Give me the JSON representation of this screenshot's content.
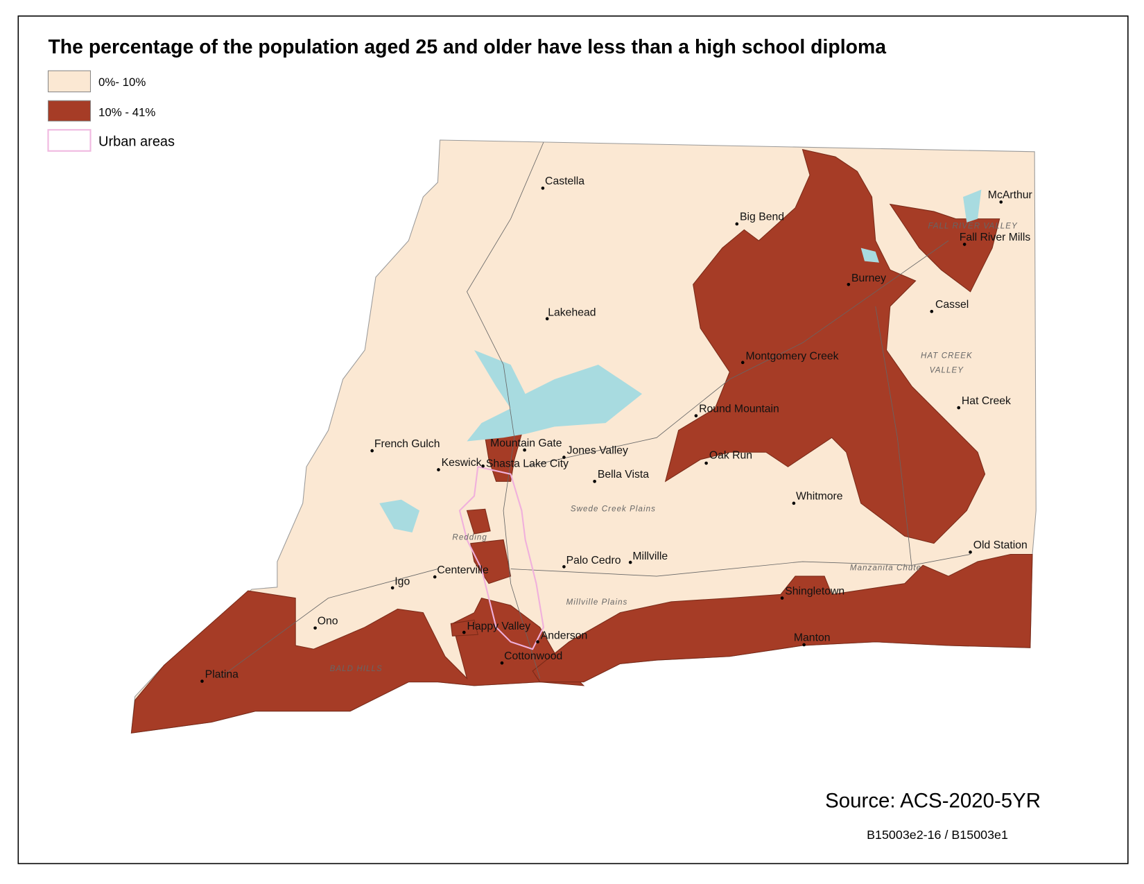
{
  "title": "The percentage of the population aged 25 and older have less than a high school diploma",
  "legend": {
    "items": [
      {
        "label": "0%- 10%"
      },
      {
        "label": "10% - 41%"
      },
      {
        "label": "Urban areas"
      }
    ]
  },
  "places": [
    "Castella",
    "Big Bend",
    "McArthur",
    "Fall River Mills",
    "Burney",
    "Cassel",
    "Lakehead",
    "Montgomery Creek",
    "Hat Creek",
    "Round Mountain",
    "French Gulch",
    "Mountain Gate",
    "Jones Valley",
    "Keswick",
    "Shasta Lake City",
    "Oak Run",
    "Bella Vista",
    "Whitmore",
    "Old Station",
    "Palo Cedro",
    "Millville",
    "Centerville",
    "Igo",
    "Shingletown",
    "Ono",
    "Happy Valley",
    "Anderson",
    "Manton",
    "Cottonwood",
    "Platina"
  ],
  "region_labels": [
    "BALD HILLS",
    "HAT CREEK",
    "VALLEY",
    "FALL RIVER VALLEY",
    "Manzanita Chute",
    "Swede Creek Plains",
    "Millville Plains",
    "Redding"
  ],
  "source": "Source: ACS-2020-5YR",
  "table_ids": "B15003e2-16 / B15003e1"
}
